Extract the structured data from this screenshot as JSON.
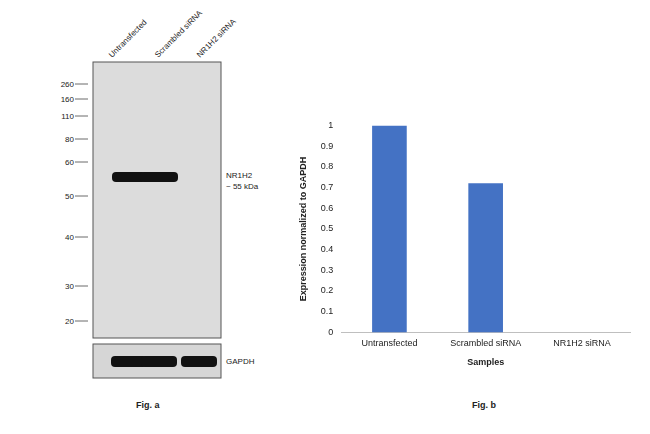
{
  "blot": {
    "title": "Fig. a",
    "lanes": [
      "Untransfected",
      "Scrambled siRNA",
      "NR1H2 siRNA"
    ],
    "markers_kda": [
      260,
      160,
      110,
      80,
      60,
      50,
      40,
      30,
      20
    ],
    "band_labels": [
      "NR1H2",
      "~ 55 kDa"
    ],
    "band_present": [
      true,
      true,
      false
    ],
    "loading_control": "GAPDH"
  },
  "chart_data": {
    "type": "bar",
    "title": "Fig. b",
    "categories": [
      "Untransfected",
      "Scrambled siRNA",
      "NR1H2 siRNA"
    ],
    "values": [
      1,
      0.72,
      0
    ],
    "color": "#4472c4",
    "x_label": "Samples",
    "y_label": "Expression normalized to GAPDH",
    "ylim": [
      0,
      1
    ],
    "yticks": [
      0,
      0.1,
      0.2,
      0.3,
      0.4,
      0.5,
      0.6,
      0.7,
      0.8,
      0.9,
      1
    ],
    "grid": false
  }
}
